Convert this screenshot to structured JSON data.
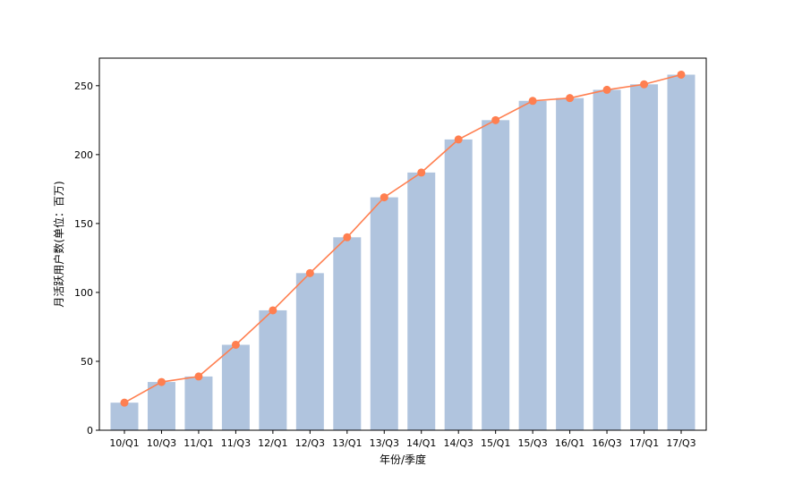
{
  "chart_data": {
    "type": "bar",
    "title": "",
    "xlabel": "年份/季度",
    "ylabel": "月活跃用户数(单位：百万)",
    "categories": [
      "10/Q1",
      "10/Q3",
      "11/Q1",
      "11/Q3",
      "12/Q1",
      "12/Q3",
      "13/Q1",
      "13/Q3",
      "14/Q1",
      "14/Q3",
      "15/Q1",
      "15/Q3",
      "16/Q1",
      "16/Q3",
      "17/Q1",
      "17/Q3"
    ],
    "values": [
      20,
      35,
      39,
      62,
      87,
      114,
      140,
      169,
      187,
      211,
      225,
      239,
      241,
      247,
      251,
      258
    ],
    "line_overlay": true,
    "ylim": [
      0,
      270
    ],
    "yticks": [
      0,
      50,
      100,
      150,
      200,
      250
    ],
    "grid": false,
    "colors": {
      "bar": "#b0c4de",
      "line": "#ff7f50"
    }
  }
}
